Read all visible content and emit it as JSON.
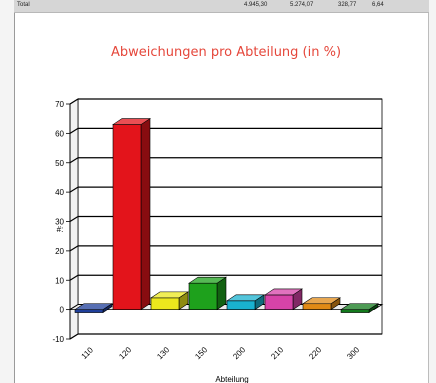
{
  "totals_row": {
    "label": "Total",
    "values": [
      "4.945,30",
      "5.274,07",
      "328,77",
      "6,64"
    ]
  },
  "chart_data": {
    "type": "bar",
    "title": "Abweichungen pro Abteilung (in %)",
    "xlabel": "Abteilung",
    "ylabel": "#:",
    "categories": [
      "110",
      "120",
      "130",
      "150",
      "200",
      "210",
      "220",
      "300"
    ],
    "values": [
      -1,
      63,
      4,
      9,
      3,
      5,
      2,
      -1
    ],
    "colors": [
      "#1f3f9a",
      "#e3141b",
      "#ece81d",
      "#1ea11c",
      "#19b2cf",
      "#d743a8",
      "#e08a16",
      "#137a1c"
    ],
    "ylim": [
      -10,
      70
    ],
    "yticks": [
      -10,
      0,
      10,
      20,
      30,
      40,
      50,
      60,
      70
    ],
    "grid": true,
    "three_d": true
  },
  "colors": {
    "title": "#e5473b",
    "grid": "#000000"
  }
}
